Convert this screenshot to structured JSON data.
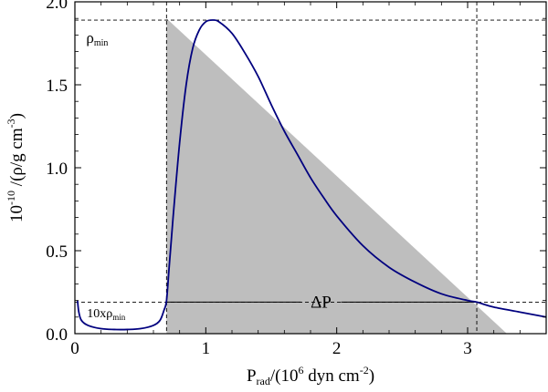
{
  "chart_data": {
    "type": "line",
    "xlim": [
      0,
      3.6
    ],
    "ylim": [
      0,
      2.0
    ],
    "x_ticks": [
      {
        "value": 0,
        "label": "0"
      },
      {
        "value": 1,
        "label": "1"
      },
      {
        "value": 2,
        "label": "2"
      },
      {
        "value": 3,
        "label": "3"
      }
    ],
    "y_ticks": [
      {
        "value": 0.0,
        "label": "0.0"
      },
      {
        "value": 0.5,
        "label": "0.5"
      },
      {
        "value": 1.0,
        "label": "1.0"
      },
      {
        "value": 1.5,
        "label": "1.5"
      },
      {
        "value": 2.0,
        "label": "2.0"
      }
    ],
    "xlabel": {
      "main": "P",
      "sub": "rad",
      "pre": "/(10",
      "sup": "6",
      "post": " dyn cm",
      "sup2": "-2",
      "end": ")"
    },
    "ylabel": {
      "main": "10",
      "sup": "-10",
      "mid": " /(ρ/g cm",
      "sup2": "-3",
      "end": ")"
    },
    "series": [
      {
        "color": "#00007f",
        "points": [
          [
            0.02,
            0.2
          ],
          [
            0.03,
            0.13
          ],
          [
            0.05,
            0.08
          ],
          [
            0.1,
            0.05
          ],
          [
            0.2,
            0.03
          ],
          [
            0.3,
            0.025
          ],
          [
            0.4,
            0.025
          ],
          [
            0.5,
            0.03
          ],
          [
            0.6,
            0.05
          ],
          [
            0.65,
            0.08
          ],
          [
            0.68,
            0.14
          ],
          [
            0.7,
            0.2
          ],
          [
            0.72,
            0.4
          ],
          [
            0.75,
            0.7
          ],
          [
            0.8,
            1.15
          ],
          [
            0.85,
            1.5
          ],
          [
            0.9,
            1.72
          ],
          [
            0.95,
            1.83
          ],
          [
            1.0,
            1.88
          ],
          [
            1.05,
            1.89
          ],
          [
            1.1,
            1.88
          ],
          [
            1.2,
            1.81
          ],
          [
            1.3,
            1.69
          ],
          [
            1.4,
            1.55
          ],
          [
            1.5,
            1.38
          ],
          [
            1.6,
            1.22
          ],
          [
            1.7,
            1.08
          ],
          [
            1.8,
            0.94
          ],
          [
            1.9,
            0.82
          ],
          [
            2.0,
            0.71
          ],
          [
            2.2,
            0.53
          ],
          [
            2.4,
            0.4
          ],
          [
            2.6,
            0.31
          ],
          [
            2.8,
            0.24
          ],
          [
            3.0,
            0.2
          ],
          [
            3.07,
            0.19
          ],
          [
            3.2,
            0.16
          ],
          [
            3.4,
            0.13
          ],
          [
            3.6,
            0.1
          ]
        ]
      }
    ],
    "shaded_region": {
      "color": "#bebebe",
      "polygon": [
        [
          0.7,
          1.9
        ],
        [
          3.3,
          0
        ],
        [
          0.7,
          0
        ]
      ]
    },
    "reference_lines": {
      "horizontal": [
        1.89,
        0.19
      ],
      "vertical": [
        0.7,
        3.07
      ]
    },
    "annotations": {
      "rho_min": {
        "main": "ρ",
        "sub": "min",
        "x": 0.1,
        "y": 1.79
      },
      "ten_rho_min": {
        "main": "10xρ",
        "sub": "min",
        "x": 0.12,
        "y": 0.2
      },
      "delta_p": {
        "text": "ΔP",
        "x": 1.88,
        "y": 0.19
      }
    },
    "grid": false
  }
}
